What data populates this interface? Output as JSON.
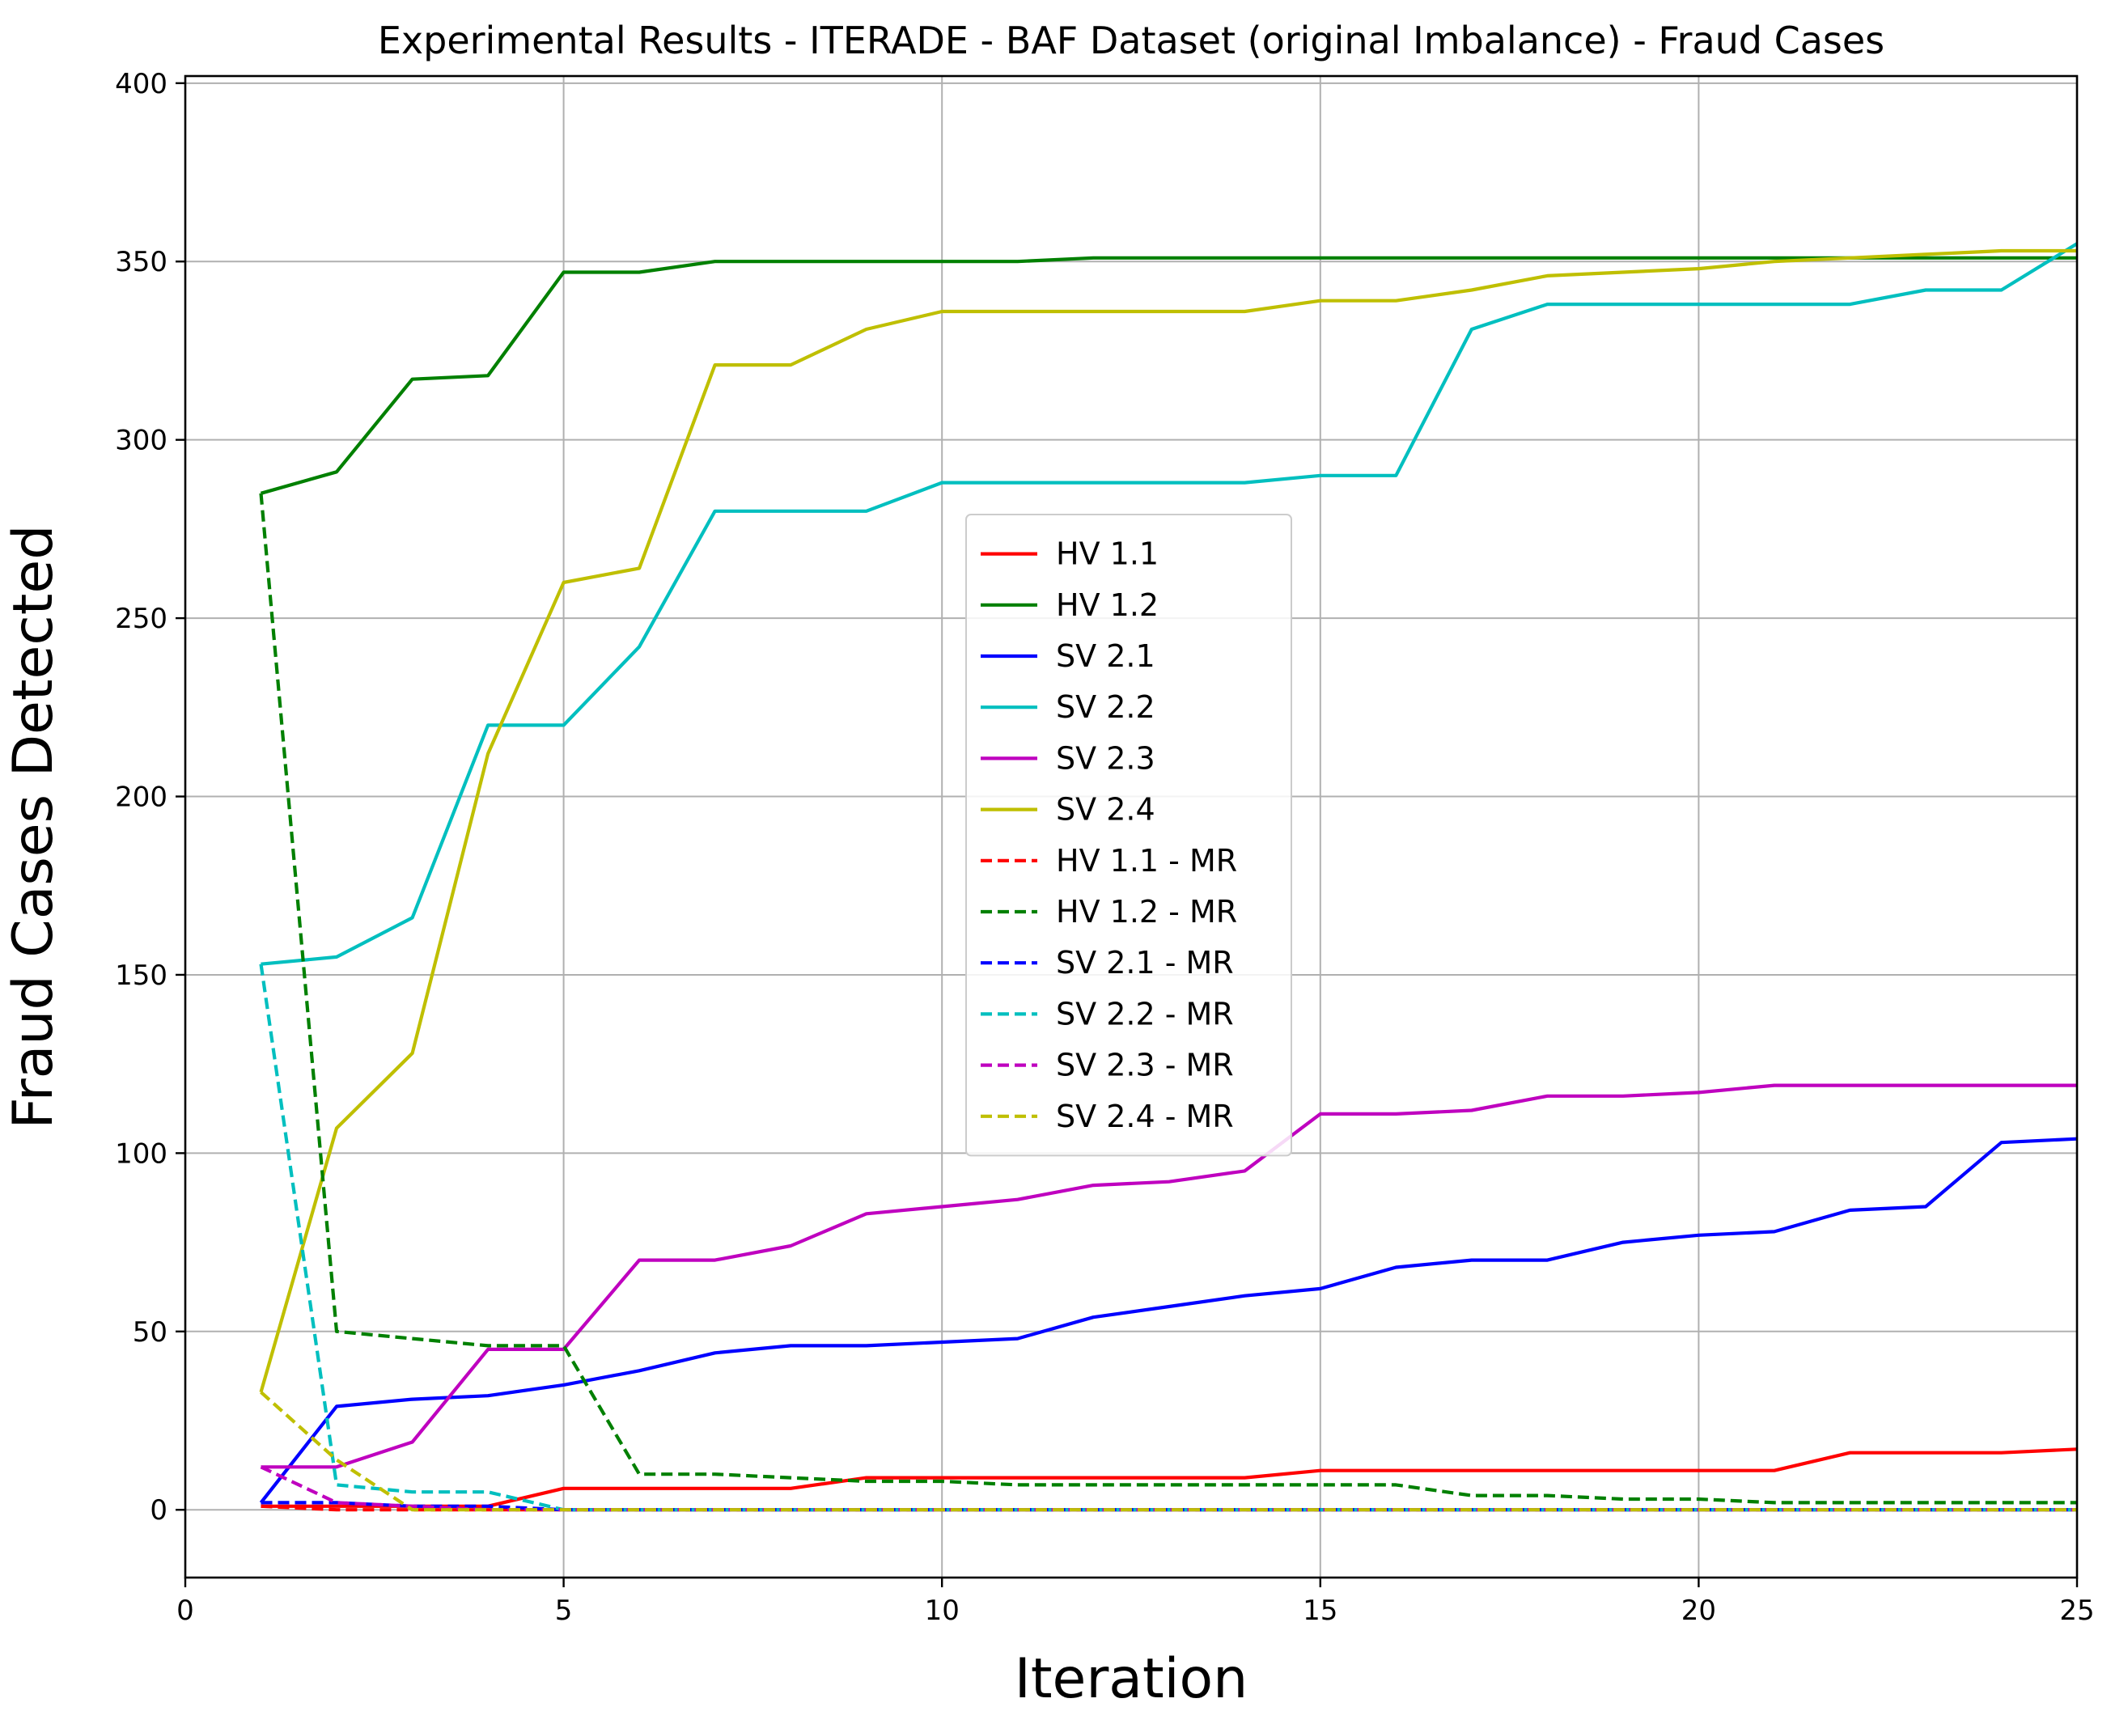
{
  "chart_data": {
    "type": "line",
    "title": "Experimental Results - ITERADE - BAF Dataset (original Imbalance) - Fraud Cases",
    "xlabel": "Iteration",
    "ylabel": "Fraud Cases Detected",
    "xlim": [
      0,
      25
    ],
    "ylim": [
      -19,
      402
    ],
    "xticks": [
      0,
      5,
      10,
      15,
      20,
      25
    ],
    "yticks": [
      0,
      50,
      100,
      150,
      200,
      250,
      300,
      350,
      400
    ],
    "grid": true,
    "legend_position": "center",
    "x": [
      1,
      2,
      3,
      4,
      5,
      6,
      7,
      8,
      9,
      10,
      11,
      12,
      13,
      14,
      15,
      16,
      17,
      18,
      19,
      20,
      21,
      22,
      23,
      24,
      25
    ],
    "series": [
      {
        "name": "HV 1.1",
        "color": "#ff0000",
        "dash": "solid",
        "values": [
          1,
          1,
          1,
          1,
          6,
          6,
          6,
          6,
          9,
          9,
          9,
          9,
          9,
          9,
          11,
          11,
          11,
          11,
          11,
          11,
          11,
          16,
          16,
          16,
          17
        ]
      },
      {
        "name": "HV 1.2",
        "color": "#008000",
        "dash": "solid",
        "values": [
          285,
          291,
          317,
          318,
          347,
          347,
          350,
          350,
          350,
          350,
          350,
          351,
          351,
          351,
          351,
          351,
          351,
          351,
          351,
          351,
          351,
          351,
          351,
          351,
          351
        ]
      },
      {
        "name": "SV 2.1",
        "color": "#0000ff",
        "dash": "solid",
        "values": [
          2,
          29,
          31,
          32,
          35,
          39,
          44,
          46,
          46,
          47,
          48,
          54,
          57,
          60,
          62,
          68,
          70,
          70,
          75,
          77,
          78,
          84,
          85,
          103,
          104
        ]
      },
      {
        "name": "SV 2.2",
        "color": "#00bfbf",
        "dash": "solid",
        "values": [
          153,
          155,
          166,
          220,
          220,
          242,
          280,
          280,
          280,
          288,
          288,
          288,
          288,
          288,
          290,
          290,
          331,
          338,
          338,
          338,
          338,
          338,
          342,
          342,
          355
        ]
      },
      {
        "name": "SV 2.3",
        "color": "#bf00bf",
        "dash": "solid",
        "values": [
          12,
          12,
          19,
          45,
          45,
          70,
          70,
          74,
          83,
          85,
          87,
          91,
          92,
          95,
          111,
          111,
          112,
          116,
          116,
          117,
          119,
          119,
          119,
          119,
          119
        ]
      },
      {
        "name": "SV 2.4",
        "color": "#bfbf00",
        "dash": "solid",
        "values": [
          33,
          107,
          128,
          212,
          260,
          264,
          321,
          321,
          331,
          336,
          336,
          336,
          336,
          336,
          339,
          339,
          342,
          346,
          347,
          348,
          350,
          351,
          352,
          353,
          353
        ]
      },
      {
        "name": "HV 1.1 - MR",
        "color": "#ff0000",
        "dash": "dashed",
        "values": [
          1,
          0,
          0,
          0,
          0,
          0,
          0,
          0,
          0,
          0,
          0,
          0,
          0,
          0,
          0,
          0,
          0,
          0,
          0,
          0,
          0,
          0,
          0,
          0,
          0
        ]
      },
      {
        "name": "HV 1.2 - MR",
        "color": "#008000",
        "dash": "dashed",
        "values": [
          285,
          50,
          48,
          46,
          46,
          10,
          10,
          9,
          8,
          8,
          7,
          7,
          7,
          7,
          7,
          7,
          4,
          4,
          3,
          3,
          2,
          2,
          2,
          2,
          2
        ]
      },
      {
        "name": "SV 2.1 - MR",
        "color": "#0000ff",
        "dash": "dashed",
        "values": [
          2,
          2,
          1,
          1,
          0,
          0,
          0,
          0,
          0,
          0,
          0,
          0,
          0,
          0,
          0,
          0,
          0,
          0,
          0,
          0,
          0,
          0,
          0,
          0,
          0
        ]
      },
      {
        "name": "SV 2.2 - MR",
        "color": "#00bfbf",
        "dash": "dashed",
        "values": [
          153,
          7,
          5,
          5,
          0,
          0,
          0,
          0,
          0,
          0,
          0,
          0,
          0,
          0,
          0,
          0,
          0,
          0,
          0,
          0,
          0,
          0,
          0,
          0,
          0
        ]
      },
      {
        "name": "SV 2.3 - MR",
        "color": "#bf00bf",
        "dash": "dashed",
        "values": [
          12,
          2,
          1,
          0,
          0,
          0,
          0,
          0,
          0,
          0,
          0,
          0,
          0,
          0,
          0,
          0,
          0,
          0,
          0,
          0,
          0,
          0,
          0,
          0,
          0
        ]
      },
      {
        "name": "SV 2.4 - MR",
        "color": "#bfbf00",
        "dash": "dashed",
        "values": [
          33,
          14,
          0,
          0,
          0,
          0,
          0,
          0,
          0,
          0,
          0,
          0,
          0,
          0,
          0,
          0,
          0,
          0,
          0,
          0,
          0,
          0,
          0,
          0,
          0
        ]
      }
    ]
  }
}
